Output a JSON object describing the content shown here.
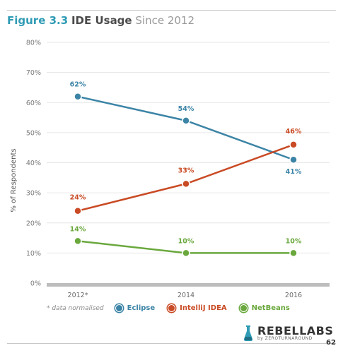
{
  "header": {
    "figure_label": "Figure 3.3",
    "title": "IDE Usage",
    "subtitle": "Since 2012"
  },
  "legend": {
    "note": "* data normalised"
  },
  "footer": {
    "brand": "REBELLABS",
    "brand_sub": "by ZEROTURNAROUND",
    "page_number": "62"
  },
  "chart_data": {
    "type": "line",
    "title": "IDE Usage Since 2012",
    "categories": [
      "2012*",
      "2014",
      "2016"
    ],
    "ylabel": "% of Respondents",
    "xlabel": "",
    "ylim": [
      0,
      80
    ],
    "yticks": [
      0,
      10,
      20,
      30,
      40,
      50,
      60,
      70,
      80
    ],
    "ytick_suffix": "%",
    "grid": true,
    "legend_position": "bottom",
    "series": [
      {
        "name": "Eclipse",
        "color": "#3c84a6",
        "values": [
          62,
          54,
          41
        ]
      },
      {
        "name": "IntelliJ IDEA",
        "color": "#c94a24",
        "values": [
          24,
          33,
          46
        ]
      },
      {
        "name": "NetBeans",
        "color": "#6aa83d",
        "values": [
          14,
          10,
          10
        ]
      }
    ]
  }
}
